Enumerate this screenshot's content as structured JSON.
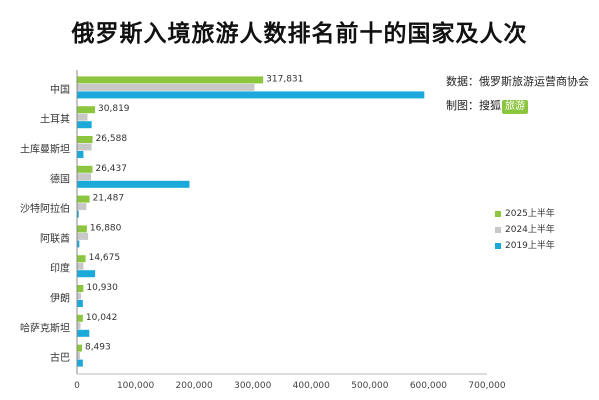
{
  "chart_data": {
    "type": "bar",
    "orientation": "horizontal",
    "title": "俄罗斯入境旅游人数排名前十的国家及人次",
    "categories": [
      "中国",
      "土耳其",
      "土库曼斯坦",
      "德国",
      "沙特阿拉伯",
      "阿联酋",
      "印度",
      "伊朗",
      "哈萨克斯坦",
      "古巴"
    ],
    "series": [
      {
        "name": "2025上半年",
        "color": "#8cc63f",
        "values": [
          317831,
          30819,
          26588,
          26437,
          21487,
          16880,
          14675,
          10930,
          10042,
          8493
        ]
      },
      {
        "name": "2024上半年",
        "color": "#c8c8c8",
        "values": [
          303000,
          18000,
          25000,
          24000,
          16000,
          19000,
          11000,
          7000,
          6000,
          5000
        ]
      },
      {
        "name": "2019上半年",
        "color": "#1aa9d9",
        "values": [
          593000,
          25000,
          11000,
          192000,
          3000,
          4000,
          31000,
          10000,
          21000,
          10000
        ]
      }
    ],
    "data_labels": [
      "317,831",
      "30,819",
      "26,588",
      "26,437",
      "21,487",
      "16,880",
      "14,675",
      "10,930",
      "10,042",
      "8,493"
    ],
    "xlim": [
      0,
      700000
    ],
    "x_ticks": [
      0,
      100000,
      200000,
      300000,
      400000,
      500000,
      600000,
      700000
    ],
    "x_tick_labels": [
      "0",
      "100,000",
      "200,000",
      "300,000",
      "400,000",
      "500,000",
      "600,000",
      "700,000"
    ],
    "grid": false,
    "legend_position": "right",
    "legend_order": [
      "2025上半年",
      "2024上半年",
      "2019上半年"
    ]
  },
  "notes": {
    "source_label": "数据：俄罗斯旅游运营商协会",
    "producer_label": "制图：搜狐",
    "producer_tag": "旅游"
  }
}
